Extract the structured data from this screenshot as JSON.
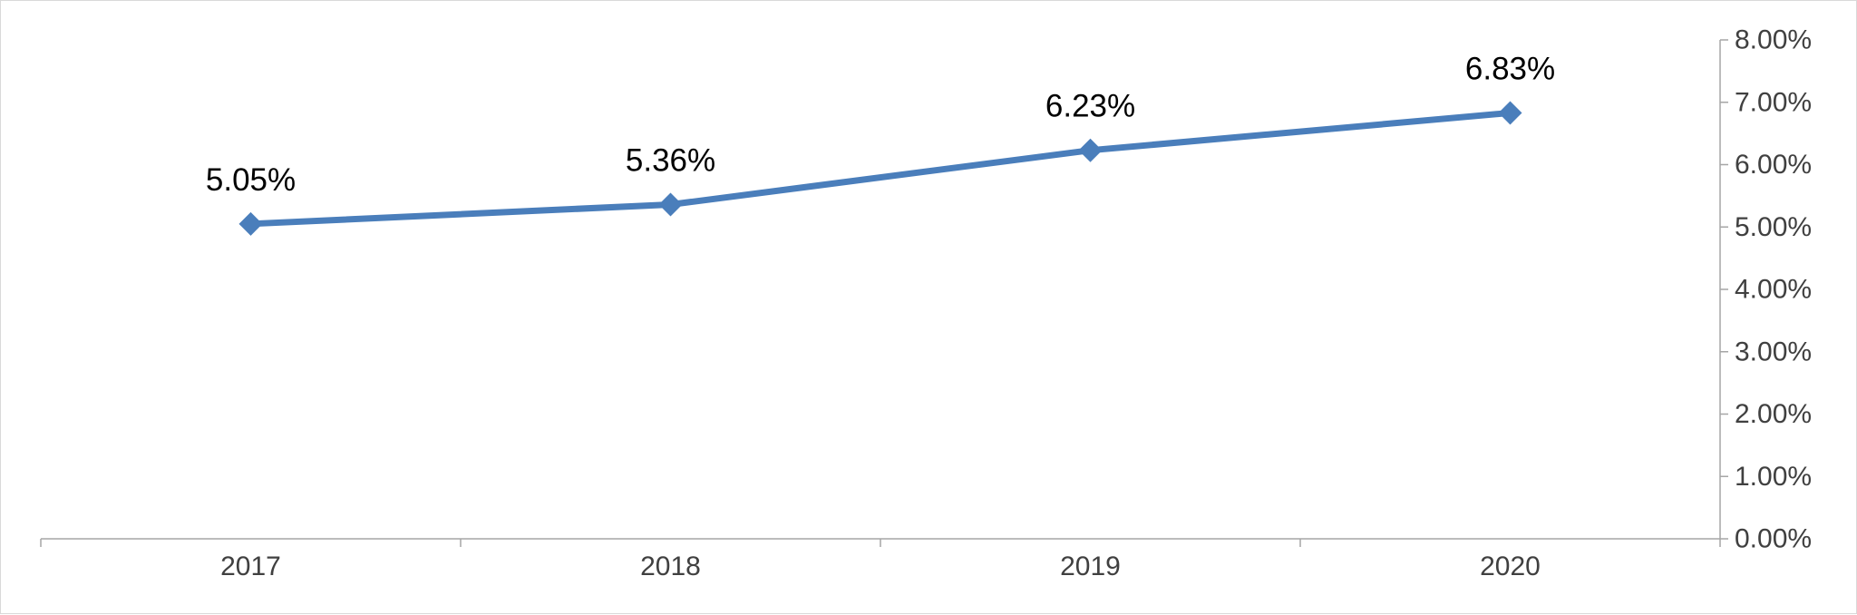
{
  "chart_data": {
    "type": "line",
    "categories": [
      "2017",
      "2018",
      "2019",
      "2020"
    ],
    "series": [
      {
        "values": [
          5.05,
          5.36,
          6.23,
          6.83
        ],
        "data_labels": [
          "5.05%",
          "5.36%",
          "6.23%",
          "6.83%"
        ],
        "color": "#4a7ebb",
        "marker": "diamond"
      }
    ],
    "title": "",
    "xlabel": "",
    "ylabel": "",
    "ylim": [
      0,
      8
    ],
    "y_ticks": [
      0,
      1,
      2,
      3,
      4,
      5,
      6,
      7,
      8
    ],
    "y_tick_labels": [
      "0.00%",
      "1.00%",
      "2.00%",
      "3.00%",
      "4.00%",
      "5.00%",
      "6.00%",
      "7.00%",
      "8.00%"
    ],
    "y_axis_position": "right",
    "grid": false,
    "legend": "none"
  },
  "colors": {
    "axis": "#a6a6a6",
    "tick_text": "#404040",
    "label_text": "#000000",
    "border": "#d9d9d9"
  }
}
